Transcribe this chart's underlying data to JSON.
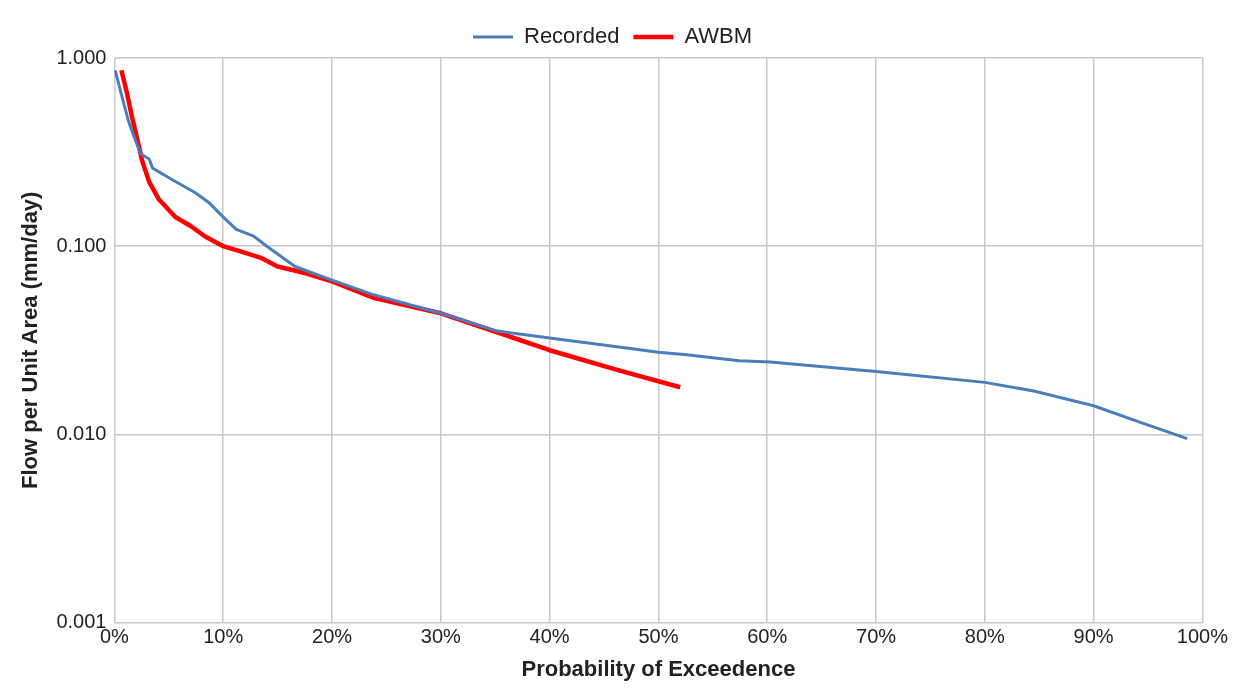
{
  "chart_data": {
    "type": "line",
    "xlabel": "Probability of Exceedence",
    "ylabel": "Flow per Unit Area (mm/day)",
    "log": "y",
    "grid": true,
    "legend": "top",
    "marker": "none",
    "line_style": "solid",
    "xlim": [
      0,
      100
    ],
    "xticks": [
      {
        "value": 0,
        "label": "0%"
      },
      {
        "value": 10,
        "label": "10%"
      },
      {
        "value": 20,
        "label": "20%"
      },
      {
        "value": 30,
        "label": "30%"
      },
      {
        "value": 40,
        "label": "40%"
      },
      {
        "value": 50,
        "label": "50%"
      },
      {
        "value": 60,
        "label": "60%"
      },
      {
        "value": 70,
        "label": "70%"
      },
      {
        "value": 80,
        "label": "80%"
      },
      {
        "value": 90,
        "label": "90%"
      },
      {
        "value": 100,
        "label": "100%"
      }
    ],
    "ylim": [
      0.001,
      1
    ],
    "yticks": [
      {
        "value": 0.001,
        "label": "0.001"
      },
      {
        "value": 0.01,
        "label": "0.010"
      },
      {
        "value": 0.1,
        "label": "0.100"
      },
      {
        "value": 1,
        "label": "1.000"
      }
    ],
    "series": [
      {
        "name": "Recorded",
        "color": "#4a7ebb",
        "x": [
          0.07,
          0.8,
          1.3,
          1.85,
          2.4,
          3.2,
          3.5,
          5.4,
          7.4,
          8.7,
          10.1,
          11.2,
          12.8,
          14.1,
          16.6,
          20,
          23.9,
          30,
          35.1,
          40,
          46.2,
          50,
          52.6,
          57.4,
          60,
          70,
          80,
          84.5,
          90,
          94.1,
          98.6
        ],
        "values": [
          0.86,
          0.59,
          0.46,
          0.376,
          0.31,
          0.29,
          0.26,
          0.224,
          0.193,
          0.17,
          0.141,
          0.123,
          0.113,
          0.099,
          0.078,
          0.066,
          0.055,
          0.044,
          0.0355,
          0.0325,
          0.0292,
          0.0273,
          0.0265,
          0.0246,
          0.0243,
          0.0216,
          0.0189,
          0.017,
          0.0142,
          0.0117,
          0.0095
        ]
      },
      {
        "name": "AWBM",
        "color": "#ff0000",
        "x": [
          0.64,
          1.1,
          1.6,
          2.1,
          2.55,
          3.2,
          4.1,
          5.6,
          7,
          8.3,
          10,
          11.8,
          13.4,
          15,
          17.5,
          20,
          23.9,
          30,
          35.1,
          40,
          46.2,
          52
        ],
        "values": [
          0.86,
          0.67,
          0.49,
          0.37,
          0.284,
          0.219,
          0.177,
          0.143,
          0.128,
          0.113,
          0.1,
          0.093,
          0.087,
          0.078,
          0.072,
          0.065,
          0.053,
          0.044,
          0.035,
          0.028,
          0.022,
          0.0178
        ]
      }
    ]
  }
}
